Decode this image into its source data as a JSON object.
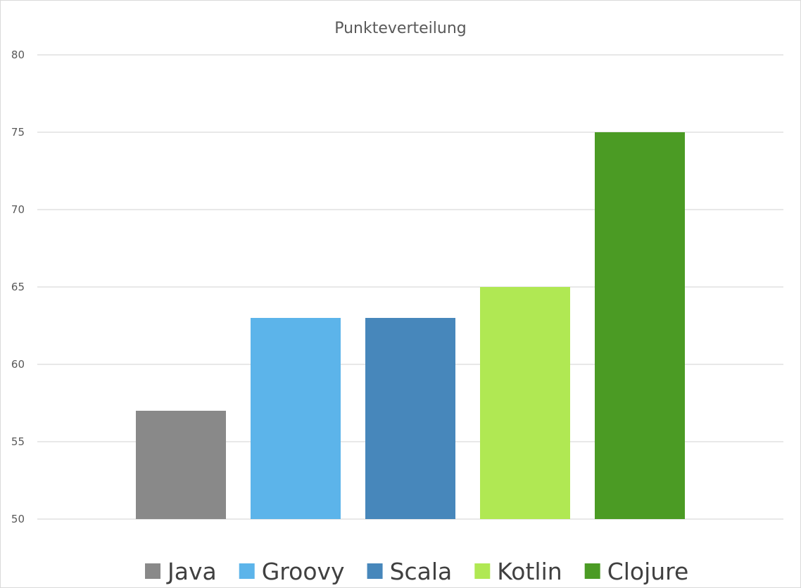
{
  "chart_data": {
    "type": "bar",
    "title": "Punkteverteilung",
    "xlabel": "",
    "ylabel": "",
    "ylim": [
      50,
      80
    ],
    "yticks": [
      50,
      55,
      60,
      65,
      70,
      75,
      80
    ],
    "grid": true,
    "legend_position": "bottom",
    "series": [
      {
        "name": "Java",
        "value": 57,
        "color": "#898989"
      },
      {
        "name": "Groovy",
        "value": 63,
        "color": "#5cb4ea"
      },
      {
        "name": "Scala",
        "value": 63,
        "color": "#4787bb"
      },
      {
        "name": "Kotlin",
        "value": 65,
        "color": "#b0e853"
      },
      {
        "name": "Clojure",
        "value": 75,
        "color": "#4b9b24"
      }
    ]
  }
}
